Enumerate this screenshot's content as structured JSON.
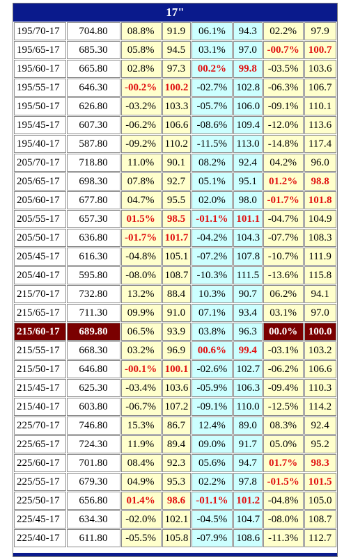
{
  "table": {
    "title": "17\"",
    "rows": [
      {
        "size": "195/70-17",
        "price": "704.80",
        "c1": "08.8%",
        "c2": "91.9",
        "c3": "06.1%",
        "c4": "94.3",
        "c5": "02.2%",
        "c6": "97.9"
      },
      {
        "size": "195/65-17",
        "price": "685.30",
        "c1": "05.8%",
        "c2": "94.5",
        "c3": "03.1%",
        "c4": "97.0",
        "c5": "-00.7%",
        "c6": "100.7"
      },
      {
        "size": "195/60-17",
        "price": "665.80",
        "c1": "02.8%",
        "c2": "97.3",
        "c3": "00.2%",
        "c4": "99.8",
        "c5": "-03.5%",
        "c6": "103.6"
      },
      {
        "size": "195/55-17",
        "price": "646.30",
        "c1": "-00.2%",
        "c2": "100.2",
        "c3": "-02.7%",
        "c4": "102.8",
        "c5": "-06.3%",
        "c6": "106.7"
      },
      {
        "size": "195/50-17",
        "price": "626.80",
        "c1": "-03.2%",
        "c2": "103.3",
        "c3": "-05.7%",
        "c4": "106.0",
        "c5": "-09.1%",
        "c6": "110.1"
      },
      {
        "size": "195/45-17",
        "price": "607.30",
        "c1": "-06.2%",
        "c2": "106.6",
        "c3": "-08.6%",
        "c4": "109.4",
        "c5": "-12.0%",
        "c6": "113.6"
      },
      {
        "size": "195/40-17",
        "price": "587.80",
        "c1": "-09.2%",
        "c2": "110.2",
        "c3": "-11.5%",
        "c4": "113.0",
        "c5": "-14.8%",
        "c6": "117.4"
      },
      {
        "size": "205/70-17",
        "price": "718.80",
        "c1": "11.0%",
        "c2": "90.1",
        "c3": "08.2%",
        "c4": "92.4",
        "c5": "04.2%",
        "c6": "96.0"
      },
      {
        "size": "205/65-17",
        "price": "698.30",
        "c1": "07.8%",
        "c2": "92.7",
        "c3": "05.1%",
        "c4": "95.1",
        "c5": "01.2%",
        "c6": "98.8"
      },
      {
        "size": "205/60-17",
        "price": "677.80",
        "c1": "04.7%",
        "c2": "95.5",
        "c3": "02.0%",
        "c4": "98.0",
        "c5": "-01.7%",
        "c6": "101.8"
      },
      {
        "size": "205/55-17",
        "price": "657.30",
        "c1": "01.5%",
        "c2": "98.5",
        "c3": "-01.1%",
        "c4": "101.1",
        "c5": "-04.7%",
        "c6": "104.9"
      },
      {
        "size": "205/50-17",
        "price": "636.80",
        "c1": "-01.7%",
        "c2": "101.7",
        "c3": "-04.2%",
        "c4": "104.3",
        "c5": "-07.7%",
        "c6": "108.3"
      },
      {
        "size": "205/45-17",
        "price": "616.30",
        "c1": "-04.8%",
        "c2": "105.1",
        "c3": "-07.2%",
        "c4": "107.8",
        "c5": "-10.7%",
        "c6": "111.9"
      },
      {
        "size": "205/40-17",
        "price": "595.80",
        "c1": "-08.0%",
        "c2": "108.7",
        "c3": "-10.3%",
        "c4": "111.5",
        "c5": "-13.6%",
        "c6": "115.8"
      },
      {
        "size": "215/70-17",
        "price": "732.80",
        "c1": "13.2%",
        "c2": "88.4",
        "c3": "10.3%",
        "c4": "90.7",
        "c5": "06.2%",
        "c6": "94.1"
      },
      {
        "size": "215/65-17",
        "price": "711.30",
        "c1": "09.9%",
        "c2": "91.0",
        "c3": "07.1%",
        "c4": "93.4",
        "c5": "03.1%",
        "c6": "97.0"
      },
      {
        "size": "215/60-17",
        "price": "689.80",
        "c1": "06.5%",
        "c2": "93.9",
        "c3": "03.8%",
        "c4": "96.3",
        "c5": "00.0%",
        "c6": "100.0"
      },
      {
        "size": "215/55-17",
        "price": "668.30",
        "c1": "03.2%",
        "c2": "96.9",
        "c3": "00.6%",
        "c4": "99.4",
        "c5": "-03.1%",
        "c6": "103.2"
      },
      {
        "size": "215/50-17",
        "price": "646.80",
        "c1": "-00.1%",
        "c2": "100.1",
        "c3": "-02.6%",
        "c4": "102.7",
        "c5": "-06.2%",
        "c6": "106.6"
      },
      {
        "size": "215/45-17",
        "price": "625.30",
        "c1": "-03.4%",
        "c2": "103.6",
        "c3": "-05.9%",
        "c4": "106.3",
        "c5": "-09.4%",
        "c6": "110.3"
      },
      {
        "size": "215/40-17",
        "price": "603.80",
        "c1": "-06.7%",
        "c2": "107.2",
        "c3": "-09.1%",
        "c4": "110.0",
        "c5": "-12.5%",
        "c6": "114.2"
      },
      {
        "size": "225/70-17",
        "price": "746.80",
        "c1": "15.3%",
        "c2": "86.7",
        "c3": "12.4%",
        "c4": "89.0",
        "c5": "08.3%",
        "c6": "92.4"
      },
      {
        "size": "225/65-17",
        "price": "724.30",
        "c1": "11.9%",
        "c2": "89.4",
        "c3": "09.0%",
        "c4": "91.7",
        "c5": "05.0%",
        "c6": "95.2"
      },
      {
        "size": "225/60-17",
        "price": "701.80",
        "c1": "08.4%",
        "c2": "92.3",
        "c3": "05.6%",
        "c4": "94.7",
        "c5": "01.7%",
        "c6": "98.3"
      },
      {
        "size": "225/55-17",
        "price": "679.30",
        "c1": "04.9%",
        "c2": "95.3",
        "c3": "02.2%",
        "c4": "97.8",
        "c5": "-01.5%",
        "c6": "101.5"
      },
      {
        "size": "225/50-17",
        "price": "656.80",
        "c1": "01.4%",
        "c2": "98.6",
        "c3": "-01.1%",
        "c4": "101.2",
        "c5": "-04.8%",
        "c6": "105.0"
      },
      {
        "size": "225/45-17",
        "price": "634.30",
        "c1": "-02.0%",
        "c2": "102.1",
        "c3": "-04.5%",
        "c4": "104.7",
        "c5": "-08.0%",
        "c6": "108.7"
      },
      {
        "size": "225/40-17",
        "price": "611.80",
        "c1": "-05.5%",
        "c2": "105.8",
        "c3": "-07.9%",
        "c4": "108.6",
        "c5": "-11.3%",
        "c6": "112.7"
      }
    ],
    "red_cells": [
      [
        1,
        "c5"
      ],
      [
        1,
        "c6"
      ],
      [
        2,
        "c3"
      ],
      [
        2,
        "c4"
      ],
      [
        3,
        "c1"
      ],
      [
        3,
        "c2"
      ],
      [
        8,
        "c5"
      ],
      [
        8,
        "c6"
      ],
      [
        9,
        "c5"
      ],
      [
        9,
        "c6"
      ],
      [
        10,
        "c1"
      ],
      [
        10,
        "c2"
      ],
      [
        10,
        "c3"
      ],
      [
        10,
        "c4"
      ],
      [
        11,
        "c1"
      ],
      [
        11,
        "c2"
      ],
      [
        17,
        "c3"
      ],
      [
        17,
        "c4"
      ],
      [
        18,
        "c1"
      ],
      [
        18,
        "c2"
      ],
      [
        23,
        "c5"
      ],
      [
        23,
        "c6"
      ],
      [
        24,
        "c5"
      ],
      [
        24,
        "c6"
      ],
      [
        25,
        "c1"
      ],
      [
        25,
        "c2"
      ],
      [
        25,
        "c3"
      ],
      [
        25,
        "c4"
      ]
    ],
    "highlight_row": 16,
    "colors": {
      "header": "#0a1a8c",
      "yellow": "#ffffcc",
      "cyan": "#ccffff",
      "red_text": "#e01010",
      "highlight": "#7a0000"
    }
  }
}
